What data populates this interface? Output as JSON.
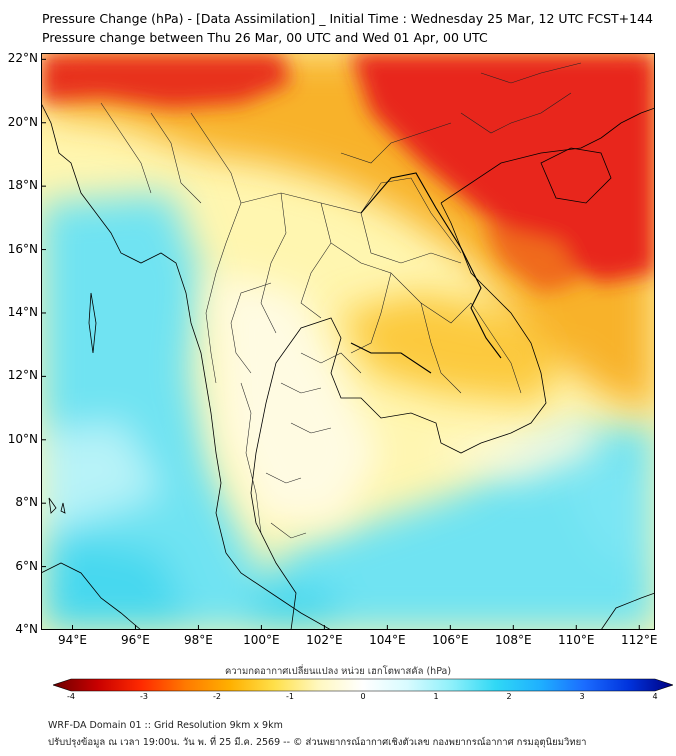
{
  "header": {
    "title_line1": "Pressure Change (hPa) - [Data Assimilation] _ Initial Time : Wednesday 25 Mar, 12 UTC FCST+144",
    "title_line2": "Pressure change between Thu 26 Mar, 00 UTC and Wed 01 Apr, 00 UTC"
  },
  "map": {
    "lon_range": [
      93,
      112.5
    ],
    "lat_range": [
      4,
      22.2
    ],
    "y_ticks": [
      "22°N",
      "20°N",
      "18°N",
      "16°N",
      "14°N",
      "12°N",
      "10°N",
      "8°N",
      "6°N",
      "4°N"
    ],
    "x_ticks": [
      "94°E",
      "96°E",
      "98°E",
      "100°E",
      "102°E",
      "104°E",
      "106°E",
      "108°E",
      "110°E",
      "112°E"
    ],
    "field_description_colors": {
      "strong_rise": "#e8261b",
      "moderate_rise": "#f7a21e",
      "slight_rise": "#fde35a",
      "near_zero": "#fffde0",
      "slight_fall": "#9ff0f6",
      "moderate_fall": "#4cdcf0"
    }
  },
  "colorbar": {
    "title": "ความกดอากาศเปลี่ยนแปลง หน่วย เฮกโตพาสคัล (hPa)",
    "ticks": [
      "-4",
      "-3",
      "-2",
      "-1",
      "0",
      "1",
      "2",
      "3",
      "4"
    ],
    "range": [
      -4,
      4
    ],
    "colors": [
      "#6b0000",
      "#c80000",
      "#ff2a00",
      "#ff7a00",
      "#ffb000",
      "#ffe04a",
      "#fff8c0",
      "#ffffff",
      "#d8fbff",
      "#8ef0fa",
      "#30d8f5",
      "#1fb0ff",
      "#1b6cff",
      "#0033dd",
      "#000080"
    ]
  },
  "footer": {
    "line1": "WRF-DA Domain 01 :: Grid Resolution 9km x 9km",
    "line2": "ปรับปรุงข้อมูล ณ เวลา 19:00น. วัน พ. ที่ 25 มี.ค. 2569 -- © ส่วนพยากรณ์อากาศเชิงตัวเลข กองพยากรณ์อากาศ กรมอุตุนิยมวิทยา"
  }
}
